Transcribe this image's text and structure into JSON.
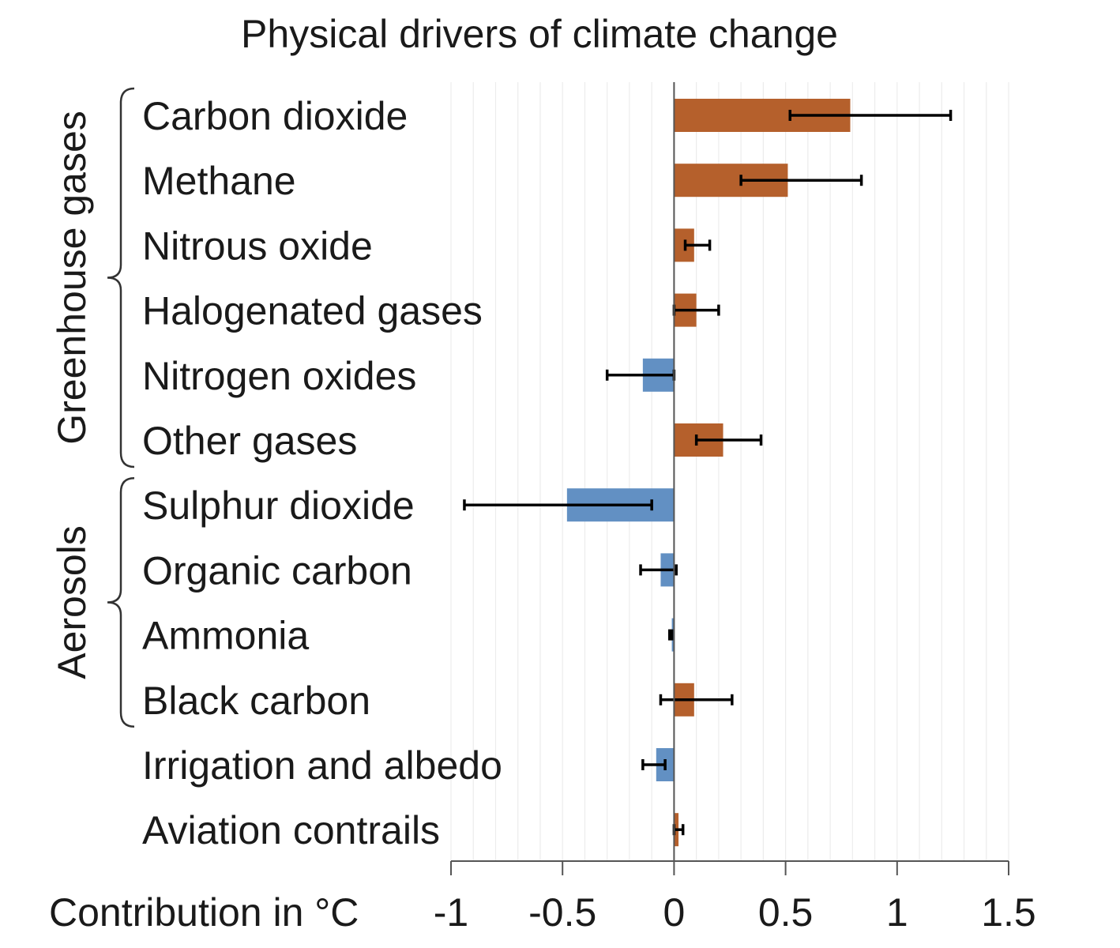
{
  "chart_data": {
    "type": "bar",
    "orientation": "horizontal",
    "title": "Physical drivers of climate change",
    "xlabel": "Contribution in °C",
    "xlim": [
      -1,
      1.5
    ],
    "xticks": [
      -1,
      -0.5,
      0,
      0.5,
      1,
      1.5
    ],
    "xtick_labels": [
      "-1",
      "-0.5",
      "0",
      "0.5",
      "1",
      "1.5"
    ],
    "minor_grid_step": 0.1,
    "colors": {
      "positive": "#b5602c",
      "negative": "#6290c3",
      "error_bar": "#000000",
      "axis": "#555555",
      "grid": "#ececec"
    },
    "groups": [
      {
        "label": "Greenhouse gases",
        "from": 0,
        "to": 5
      },
      {
        "label": "Aerosols",
        "from": 6,
        "to": 9
      }
    ],
    "categories": [
      "Carbon dioxide",
      "Methane",
      "Nitrous oxide",
      "Halogenated gases",
      "Nitrogen oxides",
      "Other gases",
      "Sulphur dioxide",
      "Organic carbon",
      "Ammonia",
      "Black carbon",
      "Irrigation and albedo",
      "Aviation contrails"
    ],
    "values": [
      0.79,
      0.51,
      0.09,
      0.1,
      -0.14,
      0.22,
      -0.48,
      -0.06,
      -0.01,
      0.09,
      -0.08,
      0.02
    ],
    "error_low": [
      0.52,
      0.3,
      0.05,
      0.0,
      -0.3,
      0.1,
      -0.94,
      -0.15,
      -0.02,
      -0.06,
      -0.14,
      0.0
    ],
    "error_high": [
      1.24,
      0.84,
      0.16,
      0.2,
      0.0,
      0.39,
      -0.1,
      0.01,
      -0.01,
      0.26,
      -0.04,
      0.04
    ]
  }
}
